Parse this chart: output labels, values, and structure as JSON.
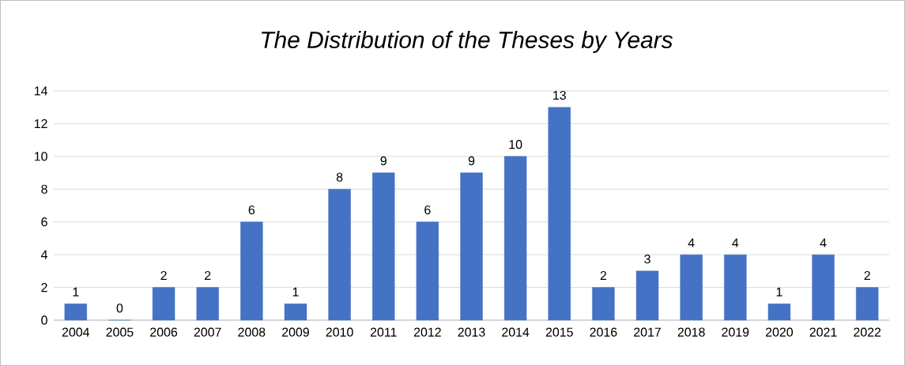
{
  "chart_data": {
    "type": "bar",
    "title": "The Distribution of the Theses by Years",
    "categories": [
      "2004",
      "2005",
      "2006",
      "2007",
      "2008",
      "2009",
      "2010",
      "2011",
      "2012",
      "2013",
      "2014",
      "2015",
      "2016",
      "2017",
      "2018",
      "2019",
      "2020",
      "2021",
      "2022"
    ],
    "values": [
      1,
      0,
      2,
      2,
      6,
      1,
      8,
      9,
      6,
      9,
      10,
      13,
      2,
      3,
      4,
      4,
      1,
      4,
      2
    ],
    "color": "#4472c4",
    "ylim": [
      0,
      14
    ],
    "yticks": [
      0,
      2,
      4,
      6,
      8,
      10,
      12,
      14
    ],
    "grid": "y",
    "data_labels": true
  }
}
